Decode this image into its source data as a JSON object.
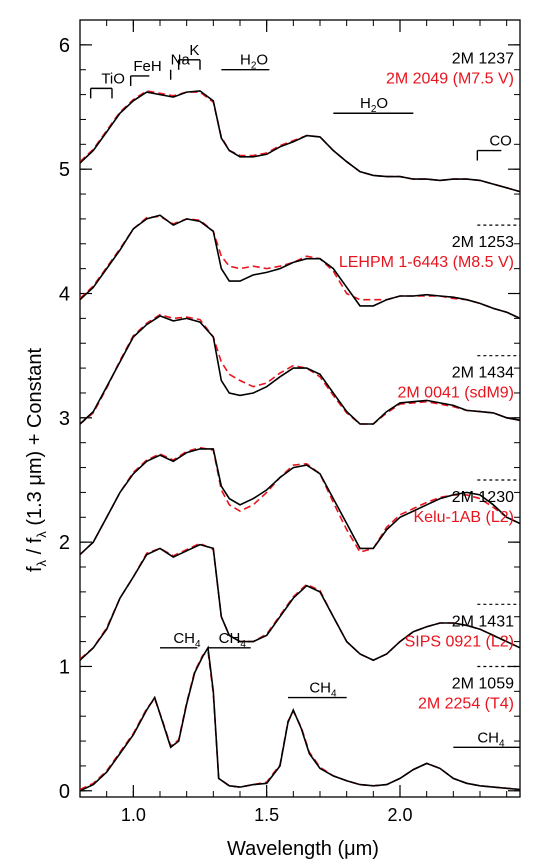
{
  "chart_data": {
    "type": "line",
    "title": "",
    "xlabel": "Wavelength (μm)",
    "ylabel_parts": {
      "f": "f",
      "lambda_sub": "λ",
      "slash": " / f",
      "rest": " (1.3 μm) + Constant"
    },
    "xlim": [
      0.8,
      2.45
    ],
    "ylim": [
      -0.05,
      6.2
    ],
    "x_ticks": [
      {
        "value": 1.0,
        "label": "1.0"
      },
      {
        "value": 1.5,
        "label": "1.5"
      },
      {
        "value": 2.0,
        "label": "2.0"
      }
    ],
    "y_ticks": [
      {
        "value": 0,
        "label": "0"
      },
      {
        "value": 1,
        "label": "1"
      },
      {
        "value": 2,
        "label": "2"
      },
      {
        "value": 3,
        "label": "3"
      },
      {
        "value": 4,
        "label": "4"
      },
      {
        "value": 5,
        "label": "5"
      },
      {
        "value": 6,
        "label": "6"
      }
    ],
    "colors": {
      "object": "#000000",
      "template": "#e8141e"
    },
    "spectra": [
      {
        "offset": 5.0,
        "object_label": "2M 1237",
        "template_label": "2M 2049 (M7.5 V)",
        "marker_level": null,
        "x": [
          0.8,
          0.85,
          0.9,
          0.95,
          1.0,
          1.05,
          1.1,
          1.15,
          1.2,
          1.25,
          1.3,
          1.33,
          1.36,
          1.4,
          1.45,
          1.5,
          1.55,
          1.6,
          1.65,
          1.7,
          1.75,
          1.8,
          1.85,
          1.9,
          1.95,
          2.0,
          2.05,
          2.1,
          2.15,
          2.2,
          2.25,
          2.3,
          2.35,
          2.4,
          2.45
        ],
        "object": [
          0.05,
          0.15,
          0.3,
          0.45,
          0.55,
          0.62,
          0.6,
          0.58,
          0.62,
          0.63,
          0.55,
          0.25,
          0.15,
          0.1,
          0.1,
          0.12,
          0.18,
          0.22,
          0.27,
          0.26,
          0.15,
          0.06,
          -0.02,
          -0.05,
          -0.06,
          -0.06,
          -0.08,
          -0.08,
          -0.09,
          -0.08,
          -0.08,
          -0.09,
          -0.12,
          -0.15,
          -0.18
        ],
        "template": [
          0.06,
          0.16,
          0.31,
          0.46,
          0.56,
          0.63,
          0.61,
          0.59,
          0.62,
          0.62,
          0.54,
          0.26,
          0.15,
          0.11,
          0.11,
          0.13,
          0.19,
          0.23,
          0.27,
          0.26,
          0.15,
          0.06,
          -0.02,
          -0.05,
          -0.06,
          -0.06,
          -0.08,
          -0.08,
          -0.09,
          -0.08,
          -0.08,
          -0.09,
          -0.12,
          -0.15,
          -0.18
        ]
      },
      {
        "offset": 4.0,
        "object_label": "2M 1253",
        "template_label": "LEHPM 1-6443 (M8.5 V)",
        "marker_level": 4.55,
        "x": [
          0.8,
          0.85,
          0.9,
          0.95,
          1.0,
          1.05,
          1.1,
          1.15,
          1.2,
          1.25,
          1.3,
          1.33,
          1.36,
          1.4,
          1.45,
          1.5,
          1.55,
          1.6,
          1.65,
          1.7,
          1.75,
          1.8,
          1.85,
          1.9,
          1.95,
          2.0,
          2.05,
          2.1,
          2.15,
          2.2,
          2.25,
          2.3,
          2.35,
          2.4,
          2.45
        ],
        "object": [
          -0.05,
          0.05,
          0.2,
          0.35,
          0.52,
          0.6,
          0.63,
          0.55,
          0.6,
          0.58,
          0.5,
          0.2,
          0.1,
          0.1,
          0.15,
          0.17,
          0.2,
          0.25,
          0.28,
          0.28,
          0.2,
          0.05,
          -0.1,
          -0.1,
          -0.05,
          -0.02,
          -0.02,
          -0.01,
          -0.02,
          -0.03,
          -0.05,
          -0.08,
          -0.12,
          -0.15,
          -0.2
        ],
        "template": [
          -0.04,
          0.06,
          0.21,
          0.36,
          0.52,
          0.61,
          0.62,
          0.56,
          0.6,
          0.59,
          0.5,
          0.3,
          0.22,
          0.2,
          0.22,
          0.2,
          0.22,
          0.25,
          0.3,
          0.28,
          0.18,
          0.0,
          -0.05,
          -0.05,
          -0.05,
          -0.02,
          -0.02,
          -0.02,
          -0.02,
          -0.04,
          -0.05,
          -0.08,
          -0.12,
          -0.15,
          -0.2
        ]
      },
      {
        "offset": 3.0,
        "object_label": "2M 1434",
        "template_label": "2M 0041 (sdM9)",
        "marker_level": 3.5,
        "x": [
          0.8,
          0.85,
          0.9,
          0.95,
          1.0,
          1.05,
          1.1,
          1.15,
          1.2,
          1.25,
          1.3,
          1.33,
          1.36,
          1.4,
          1.45,
          1.5,
          1.55,
          1.6,
          1.65,
          1.7,
          1.75,
          1.8,
          1.85,
          1.9,
          1.95,
          2.0,
          2.05,
          2.1,
          2.15,
          2.2,
          2.25,
          2.3,
          2.35,
          2.4,
          2.45
        ],
        "object": [
          -0.05,
          0.05,
          0.25,
          0.45,
          0.65,
          0.75,
          0.82,
          0.78,
          0.8,
          0.77,
          0.65,
          0.3,
          0.2,
          0.18,
          0.2,
          0.25,
          0.33,
          0.4,
          0.4,
          0.35,
          0.2,
          0.05,
          -0.05,
          -0.05,
          0.05,
          0.12,
          0.13,
          0.14,
          0.12,
          0.1,
          0.06,
          0.05,
          0.04,
          0.0,
          -0.02
        ],
        "template": [
          -0.05,
          0.04,
          0.24,
          0.46,
          0.66,
          0.76,
          0.83,
          0.8,
          0.81,
          0.79,
          0.65,
          0.45,
          0.35,
          0.3,
          0.25,
          0.28,
          0.36,
          0.42,
          0.4,
          0.33,
          0.18,
          0.04,
          -0.05,
          -0.05,
          0.04,
          0.11,
          0.12,
          0.13,
          0.11,
          0.09,
          0.06,
          0.05,
          0.04,
          0.0,
          -0.02
        ]
      },
      {
        "offset": 2.0,
        "object_label": "2M 1230",
        "template_label": "Kelu-1AB (L2)",
        "marker_level": 2.5,
        "x": [
          0.8,
          0.85,
          0.9,
          0.95,
          1.0,
          1.05,
          1.1,
          1.15,
          1.2,
          1.25,
          1.3,
          1.33,
          1.36,
          1.4,
          1.45,
          1.5,
          1.55,
          1.6,
          1.65,
          1.7,
          1.75,
          1.8,
          1.85,
          1.9,
          1.95,
          2.0,
          2.05,
          2.1,
          2.15,
          2.2,
          2.25,
          2.3,
          2.35,
          2.4,
          2.45
        ],
        "object": [
          -0.1,
          0.0,
          0.2,
          0.4,
          0.55,
          0.65,
          0.7,
          0.65,
          0.72,
          0.75,
          0.75,
          0.45,
          0.35,
          0.3,
          0.35,
          0.42,
          0.52,
          0.6,
          0.62,
          0.55,
          0.35,
          0.15,
          -0.05,
          -0.05,
          0.1,
          0.2,
          0.25,
          0.3,
          0.35,
          0.38,
          0.4,
          0.38,
          0.3,
          0.2,
          0.15
        ],
        "template": [
          -0.1,
          0.0,
          0.2,
          0.4,
          0.56,
          0.66,
          0.71,
          0.66,
          0.73,
          0.76,
          0.74,
          0.42,
          0.3,
          0.25,
          0.3,
          0.4,
          0.52,
          0.62,
          0.63,
          0.55,
          0.32,
          0.1,
          -0.08,
          -0.05,
          0.12,
          0.22,
          0.27,
          0.32,
          0.36,
          0.38,
          0.38,
          0.35,
          0.28,
          0.2,
          0.15
        ]
      },
      {
        "offset": 1.0,
        "object_label": "2M 1431",
        "template_label": "SIPS 0921 (L2)",
        "marker_level": 1.5,
        "x": [
          0.8,
          0.85,
          0.9,
          0.95,
          1.0,
          1.05,
          1.1,
          1.15,
          1.2,
          1.25,
          1.3,
          1.33,
          1.36,
          1.4,
          1.45,
          1.5,
          1.55,
          1.6,
          1.65,
          1.7,
          1.75,
          1.8,
          1.85,
          1.9,
          1.95,
          2.0,
          2.05,
          2.1,
          2.15,
          2.2,
          2.25,
          2.3,
          2.35,
          2.4,
          2.45
        ],
        "object": [
          0.05,
          0.15,
          0.3,
          0.55,
          0.72,
          0.9,
          0.95,
          0.88,
          0.93,
          0.98,
          0.95,
          0.4,
          0.25,
          0.2,
          0.2,
          0.25,
          0.4,
          0.55,
          0.65,
          0.6,
          0.4,
          0.2,
          0.1,
          0.05,
          0.1,
          0.2,
          0.28,
          0.32,
          0.35,
          0.35,
          0.33,
          0.3,
          0.25,
          0.2,
          0.15
        ],
        "template": [
          0.06,
          0.15,
          0.31,
          0.55,
          0.72,
          0.91,
          0.95,
          0.89,
          0.94,
          0.99,
          0.94,
          0.4,
          0.25,
          0.2,
          0.2,
          0.26,
          0.41,
          0.56,
          0.66,
          0.61,
          0.4,
          0.2,
          0.1,
          0.05,
          0.1,
          0.2,
          0.28,
          0.32,
          0.35,
          0.35,
          0.33,
          0.3,
          0.25,
          0.2,
          0.15
        ]
      },
      {
        "offset": 0.0,
        "object_label": "2M 1059",
        "template_label": "2M 2254 (T4)",
        "marker_level": 1.0,
        "x": [
          0.8,
          0.85,
          0.9,
          0.95,
          1.0,
          1.05,
          1.08,
          1.11,
          1.14,
          1.17,
          1.2,
          1.23,
          1.26,
          1.28,
          1.3,
          1.32,
          1.36,
          1.4,
          1.45,
          1.5,
          1.55,
          1.58,
          1.6,
          1.63,
          1.66,
          1.7,
          1.75,
          1.8,
          1.85,
          1.9,
          1.95,
          2.0,
          2.05,
          2.1,
          2.15,
          2.2,
          2.25,
          2.3,
          2.35,
          2.4,
          2.45
        ],
        "object": [
          0.0,
          0.05,
          0.15,
          0.3,
          0.45,
          0.65,
          0.75,
          0.55,
          0.35,
          0.4,
          0.7,
          0.95,
          1.08,
          1.15,
          0.8,
          0.1,
          0.04,
          0.03,
          0.05,
          0.06,
          0.2,
          0.55,
          0.65,
          0.5,
          0.3,
          0.18,
          0.12,
          0.08,
          0.05,
          0.04,
          0.05,
          0.1,
          0.17,
          0.22,
          0.18,
          0.1,
          0.06,
          0.04,
          0.03,
          0.02,
          0.01
        ],
        "template": [
          0.01,
          0.06,
          0.16,
          0.31,
          0.46,
          0.66,
          0.74,
          0.56,
          0.36,
          0.41,
          0.71,
          0.96,
          1.09,
          1.12,
          0.78,
          0.1,
          0.04,
          0.03,
          0.05,
          0.07,
          0.21,
          0.56,
          0.64,
          0.51,
          0.31,
          0.19,
          0.12,
          0.08,
          0.05,
          0.04,
          0.05,
          0.1,
          0.17,
          0.22,
          0.18,
          0.1,
          0.06,
          0.04,
          0.03,
          0.02,
          0.01
        ]
      }
    ],
    "feature_labels": [
      {
        "text": "TiO",
        "sub": "",
        "suffix": "",
        "x_start": 0.84,
        "x_end": 0.92,
        "level": 5.65,
        "tick_left": true,
        "tick_right": true,
        "text_x": 0.88
      },
      {
        "text": "FeH",
        "sub": "",
        "suffix": "",
        "x_start": 0.99,
        "x_end": 1.06,
        "level": 5.75,
        "tick_left": true,
        "tick_right": false,
        "text_x": 1.0
      },
      {
        "text": "Na",
        "sub": "",
        "suffix": "",
        "x_start": 1.14,
        "x_end": 1.14,
        "level": 5.8,
        "tick_left": true,
        "tick_right": false,
        "text_x": 1.14
      },
      {
        "text": "K",
        "sub": "",
        "suffix": "",
        "x_start": 1.17,
        "x_end": 1.25,
        "level": 5.88,
        "tick_left": true,
        "tick_right": true,
        "text_x": 1.21
      },
      {
        "text": "H",
        "sub": "2",
        "suffix": "O",
        "x_start": 1.33,
        "x_end": 1.51,
        "level": 5.8,
        "tick_left": false,
        "tick_right": false,
        "text_x": 1.4
      },
      {
        "text": "H",
        "sub": "2",
        "suffix": "O",
        "x_start": 1.75,
        "x_end": 2.05,
        "level": 5.45,
        "tick_left": false,
        "tick_right": false,
        "text_x": 1.85
      },
      {
        "text": "CO",
        "sub": "",
        "suffix": "",
        "x_start": 2.29,
        "x_end": 2.38,
        "level": 5.15,
        "tick_left": true,
        "tick_right": false,
        "text_x": 2.335
      },
      {
        "text": "CH",
        "sub": "4",
        "suffix": "",
        "x_start": 1.1,
        "x_end": 1.24,
        "level": 1.15,
        "tick_left": false,
        "tick_right": false,
        "text_x": 1.15
      },
      {
        "text": "CH",
        "sub": "4",
        "suffix": "",
        "x_start": 1.28,
        "x_end": 1.44,
        "level": 1.15,
        "tick_left": false,
        "tick_right": false,
        "text_x": 1.32
      },
      {
        "text": "CH",
        "sub": "4",
        "suffix": "",
        "x_start": 1.58,
        "x_end": 1.8,
        "level": 0.75,
        "tick_left": false,
        "tick_right": false,
        "text_x": 1.66
      },
      {
        "text": "CH",
        "sub": "4",
        "suffix": "",
        "x_start": 2.2,
        "x_end": 2.45,
        "level": 0.35,
        "tick_left": false,
        "tick_right": false,
        "text_x": 2.29
      }
    ],
    "grid": false,
    "legend": "none"
  }
}
